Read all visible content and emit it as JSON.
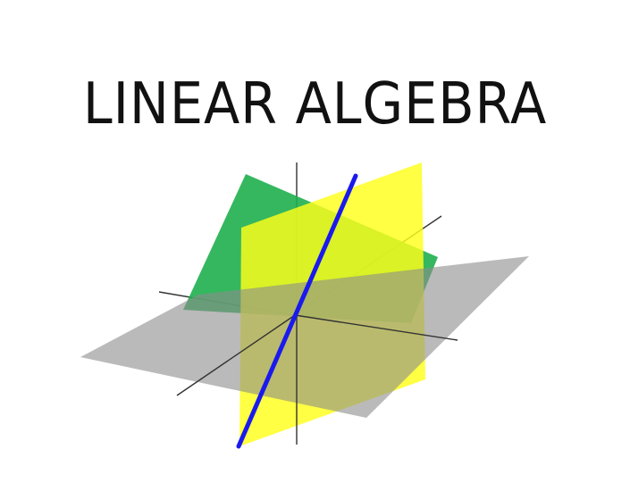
{
  "title": "LINEAR ALGEBRA",
  "illustration": {
    "colors": {
      "green_plane": "#1faf4e",
      "yellow_plane": "#ffff1a",
      "gray_plane": "#8c8c8c",
      "axes": "#333333",
      "line": "#1a1aee"
    }
  }
}
